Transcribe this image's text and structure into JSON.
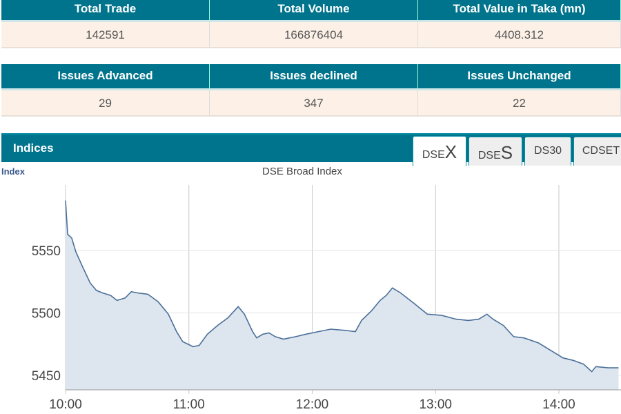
{
  "summary1": {
    "headers": [
      "Total Trade",
      "Total Volume",
      "Total Value in Taka (mn)"
    ],
    "values": [
      "142591",
      "166876404",
      "4408.312"
    ]
  },
  "summary2": {
    "headers": [
      "Issues Advanced",
      "Issues declined",
      "Issues Unchanged"
    ],
    "values": [
      "29",
      "347",
      "22"
    ]
  },
  "indices": {
    "title": "Indices",
    "tabs": [
      {
        "pre": "DSE",
        "big": "X"
      },
      {
        "pre": "DSE",
        "big": "S"
      },
      {
        "pre": "DS30",
        "big": ""
      },
      {
        "pre": "CDSET",
        "big": ""
      }
    ]
  },
  "chart_data": {
    "type": "area",
    "title": "DSE Broad Index",
    "ylabel": "Index",
    "xlabel": "",
    "x_unit": "minutes since 10:00",
    "xlim": [
      0,
      270
    ],
    "ylim": [
      5435,
      5600
    ],
    "yticks": [
      5450,
      5500,
      5550
    ],
    "xticks": [
      {
        "m": 0,
        "label": "10:00"
      },
      {
        "m": 60,
        "label": "11:00"
      },
      {
        "m": 120,
        "label": "12:00"
      },
      {
        "m": 180,
        "label": "13:00"
      },
      {
        "m": 240,
        "label": "14:00"
      }
    ],
    "x": [
      0,
      1,
      3,
      5,
      8,
      12,
      15,
      18,
      22,
      25,
      29,
      32,
      35,
      40,
      45,
      50,
      54,
      57,
      62,
      65,
      69,
      74,
      79,
      84,
      87,
      91,
      93,
      96,
      99,
      102,
      106,
      109,
      112,
      117,
      123,
      129,
      136,
      141,
      144,
      149,
      153,
      156,
      159,
      163,
      170,
      176,
      183,
      190,
      196,
      201,
      205,
      208,
      213,
      218,
      223,
      230,
      237,
      242,
      247,
      252,
      256,
      258,
      264,
      269
    ],
    "y": [
      5590,
      5563,
      5560,
      5549,
      5538,
      5524,
      5518,
      5516,
      5514,
      5510,
      5512,
      5517,
      5516,
      5515,
      5509,
      5499,
      5485,
      5477,
      5473,
      5474,
      5483,
      5490,
      5496,
      5505,
      5499,
      5485,
      5480,
      5483,
      5484,
      5481,
      5479,
      5480,
      5481,
      5483,
      5485,
      5487,
      5486,
      5485,
      5494,
      5502,
      5510,
      5514,
      5520,
      5516,
      5507,
      5499,
      5498,
      5495,
      5494,
      5495,
      5499,
      5495,
      5490,
      5481,
      5480,
      5476,
      5469,
      5464,
      5462,
      5459,
      5453,
      5457,
      5456,
      5456
    ],
    "colors": {
      "line": "#4a6f98",
      "fill": "#dde5ef",
      "grid": "#c8c8c8"
    }
  }
}
